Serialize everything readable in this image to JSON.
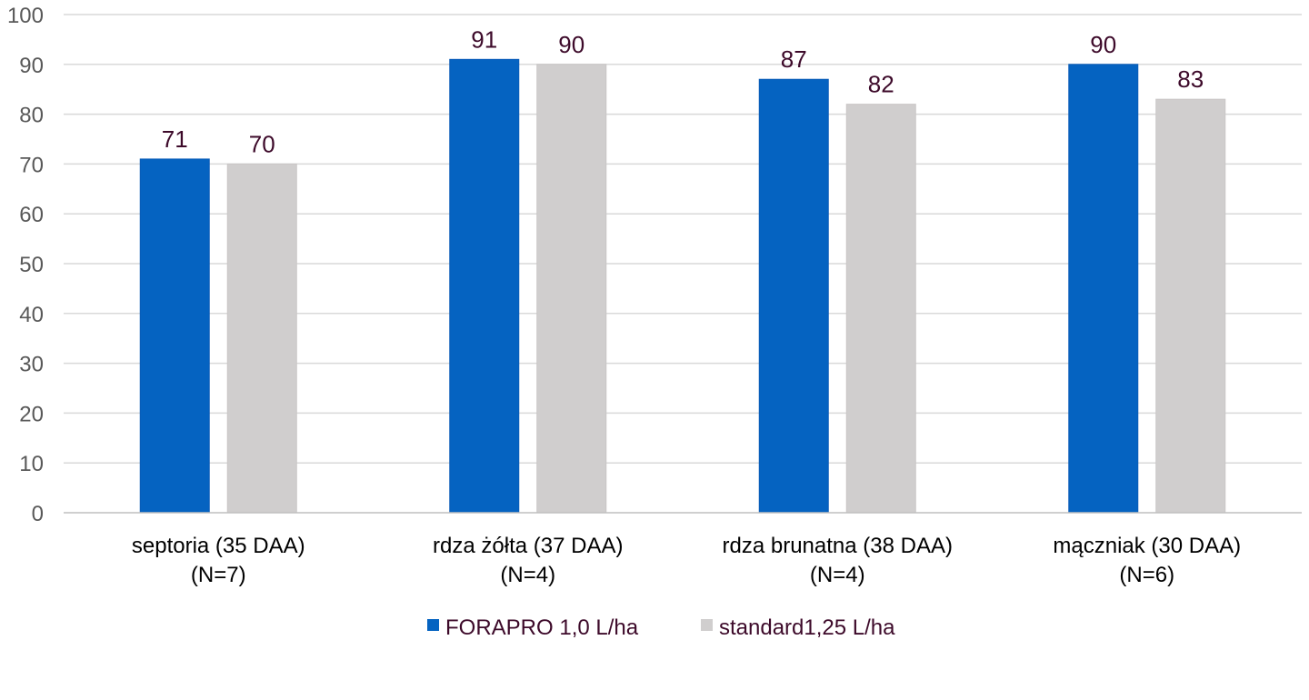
{
  "chart_data": {
    "type": "bar",
    "categories": [
      [
        "septoria (35 DAA)",
        "(N=7)"
      ],
      [
        "rdza żółta (37 DAA)",
        "(N=4)"
      ],
      [
        "rdza brunatna (38 DAA)",
        "(N=4)"
      ],
      [
        "mączniak (30 DAA)",
        "(N=6)"
      ]
    ],
    "series": [
      {
        "name": "FORAPRO 1,0 L/ha",
        "values": [
          71,
          91,
          87,
          90
        ],
        "color": "#0563C1"
      },
      {
        "name": "standard1,25 L/ha",
        "values": [
          70,
          90,
          82,
          83
        ],
        "color": "#D0CECE"
      }
    ],
    "data_labels": [
      [
        "71",
        "91",
        "87",
        "90"
      ],
      [
        "70",
        "90",
        "82",
        "83"
      ]
    ],
    "ylim": [
      0,
      100
    ],
    "yticks": [
      0,
      10,
      20,
      30,
      40,
      50,
      60,
      70,
      80,
      90,
      100
    ],
    "grid": true,
    "legend": "bottom-center",
    "title": "",
    "xlabel": "",
    "ylabel": ""
  }
}
